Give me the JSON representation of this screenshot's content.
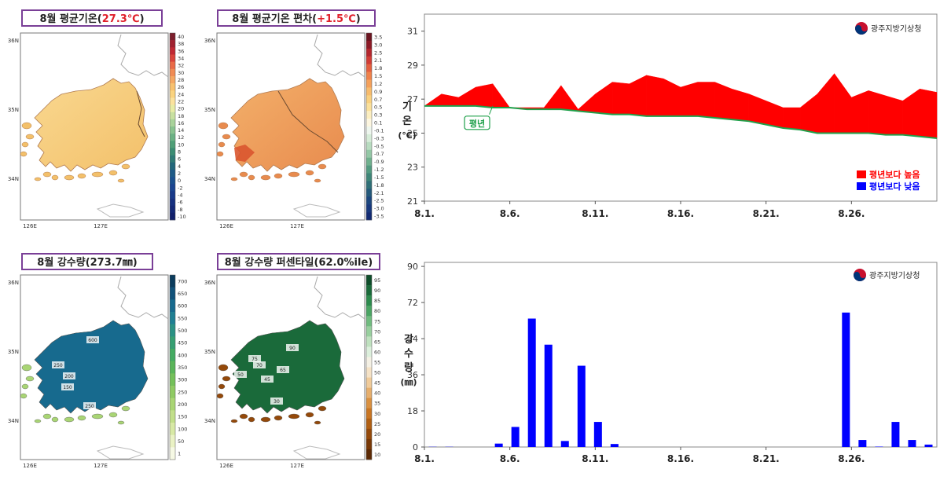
{
  "maps": [
    {
      "title_prefix": "8월 평균기온(",
      "title_value": "27.3℃",
      "title_suffix": ")",
      "colorbar": {
        "ticks": [
          "40",
          "38",
          "36",
          "34",
          "32",
          "30",
          "28",
          "26",
          "24",
          "22",
          "20",
          "18",
          "16",
          "14",
          "12",
          "10",
          "8",
          "6",
          "4",
          "2",
          "0",
          "-2",
          "-4",
          "-6",
          "-8",
          "-10"
        ],
        "colors": [
          "#7b1e2c",
          "#a0202f",
          "#c02833",
          "#d9433b",
          "#e96a47",
          "#f08b54",
          "#f5a762",
          "#f8c16f",
          "#fad37f",
          "#fbe29d",
          "#e8eca5",
          "#c8e0a0",
          "#a8d29a",
          "#88c28f",
          "#6bb184",
          "#4f9f77",
          "#3b8c73",
          "#2f7a75",
          "#22677b",
          "#1e5a86",
          "#1a4f8e",
          "#1a4490",
          "#183a8a",
          "#163080",
          "#142876",
          "#12206b"
        ]
      },
      "lat_labels": [
        "36N",
        "35N",
        "34N"
      ],
      "lon_labels": [
        "126E",
        "127E"
      ]
    },
    {
      "title_prefix": "8월 평균기온 편차(",
      "title_value": "+1.5℃",
      "title_suffix": ")",
      "colorbar": {
        "ticks": [
          "3.5",
          "3.0",
          "2.5",
          "2.1",
          "1.8",
          "1.5",
          "1.2",
          "0.9",
          "0.7",
          "0.5",
          "0.3",
          "0.1",
          "-0.1",
          "-0.3",
          "-0.5",
          "-0.7",
          "-0.9",
          "-1.2",
          "-1.5",
          "-1.8",
          "-2.1",
          "-2.5",
          "-3.0",
          "-3.5"
        ],
        "colors": [
          "#6b1520",
          "#8c1a26",
          "#b3262d",
          "#d03c35",
          "#e35f3e",
          "#ef814a",
          "#f4a05a",
          "#f7bb6c",
          "#f9d07f",
          "#fbe09a",
          "#fceec0",
          "#fdf6e0",
          "#eef6ee",
          "#d6ecd8",
          "#b8dcc0",
          "#93c7a5",
          "#6fb08d",
          "#529a7f",
          "#3e8577",
          "#2f6f76",
          "#24597a",
          "#1c467d",
          "#17387c",
          "#122a72"
        ]
      },
      "lat_labels": [
        "36N",
        "35N",
        "34N"
      ],
      "lon_labels": [
        "126E",
        "127E"
      ]
    },
    {
      "title_prefix": "8월 강수량(",
      "title_value": "273.7㎜",
      "title_suffix": ")",
      "colorbar": {
        "ticks": [
          "700",
          "650",
          "600",
          "550",
          "500",
          "450",
          "400",
          "350",
          "300",
          "250",
          "200",
          "150",
          "100",
          "50",
          "1"
        ],
        "colors": [
          "#0b3c5d",
          "#11527a",
          "#176a8e",
          "#1f7f93",
          "#2a9184",
          "#369f72",
          "#44ab62",
          "#5ab55a",
          "#74c05a",
          "#8fca63",
          "#a9d574",
          "#c2df8a",
          "#d8e9a5",
          "#eaf2c4",
          "#f6f9e4"
        ]
      },
      "lat_labels": [
        "36N",
        "35N",
        "34N"
      ],
      "lon_labels": [
        "126E",
        "127E"
      ],
      "contours": [
        "600",
        "250",
        "200",
        "150",
        "250"
      ]
    },
    {
      "title_prefix": "8월 강수량 퍼센타일(",
      "title_value": "62.0%ile",
      "title_suffix": ")",
      "colorbar": {
        "ticks": [
          "95",
          "90",
          "85",
          "80",
          "75",
          "70",
          "65",
          "60",
          "55",
          "50",
          "45",
          "40",
          "35",
          "30",
          "25",
          "20",
          "15",
          "10"
        ],
        "colors": [
          "#0e4d2a",
          "#1a6a3a",
          "#2c8a4d",
          "#4aa463",
          "#70bb7f",
          "#98cf9e",
          "#bfe1bf",
          "#dcefdc",
          "#f4f0e4",
          "#f5e2c6",
          "#f0cb9a",
          "#e6ae6c",
          "#d99040",
          "#c87522",
          "#b05f12",
          "#94490a",
          "#783806",
          "#5c2904"
        ]
      },
      "lat_labels": [
        "36N",
        "35N",
        "34N"
      ],
      "lon_labels": [
        "126E",
        "127E"
      ],
      "contours": [
        "90",
        "75",
        "70",
        "65",
        "50",
        "45",
        "30"
      ]
    }
  ],
  "agency_label": "광주지방기상청",
  "chart_data": [
    {
      "type": "area",
      "x_tick_labels": [
        "8.1.",
        "8.6.",
        "8.11.",
        "8.16.",
        "8.21.",
        "8.26."
      ],
      "x": [
        1,
        2,
        3,
        4,
        5,
        6,
        7,
        8,
        9,
        10,
        11,
        12,
        13,
        14,
        15,
        16,
        17,
        18,
        19,
        20,
        21,
        22,
        23,
        24,
        25,
        26,
        27,
        28,
        29,
        30,
        31
      ],
      "series": [
        {
          "name": "평년보다 높음",
          "color": "#ff0000",
          "values": [
            26.6,
            27.3,
            27.1,
            27.7,
            27.9,
            26.5,
            26.5,
            26.5,
            27.8,
            26.4,
            27.3,
            28.0,
            27.9,
            28.4,
            28.2,
            27.7,
            28.0,
            28.0,
            27.6,
            27.3,
            26.9,
            26.5,
            26.5,
            27.3,
            28.5,
            27.1,
            27.5,
            27.2,
            26.9,
            27.6,
            27.4
          ]
        },
        {
          "name": "평년",
          "color": "#1fa04a",
          "values": [
            26.6,
            26.6,
            26.6,
            26.6,
            26.5,
            26.5,
            26.4,
            26.4,
            26.4,
            26.3,
            26.2,
            26.1,
            26.1,
            26.0,
            26.0,
            26.0,
            26.0,
            25.9,
            25.8,
            25.7,
            25.5,
            25.3,
            25.2,
            25.0,
            25.0,
            25.0,
            25.0,
            24.9,
            24.9,
            24.8,
            24.7
          ]
        }
      ],
      "below_normal_color": "#0000ff",
      "legend": [
        {
          "label": "평년보다 높음",
          "color": "#ff0000"
        },
        {
          "label": "평년보다 낮음",
          "color": "#0000ff"
        }
      ],
      "legend_position": "bottom-right",
      "normal_annotation": "평년",
      "ylabel_lines": [
        "기",
        "온",
        "(℃)"
      ],
      "yticks": [
        21,
        23,
        25,
        27,
        29,
        31
      ],
      "ylim": [
        21,
        32
      ],
      "grid": false
    },
    {
      "type": "bar",
      "x_tick_labels": [
        "8.1.",
        "8.6.",
        "8.11.",
        "8.16.",
        "8.21.",
        "8.26."
      ],
      "x": [
        1,
        2,
        3,
        4,
        5,
        6,
        7,
        8,
        9,
        10,
        11,
        12,
        13,
        14,
        15,
        16,
        17,
        18,
        19,
        20,
        21,
        22,
        23,
        24,
        25,
        26,
        27,
        28,
        29,
        30,
        31
      ],
      "values": [
        0.1,
        0.1,
        0,
        0,
        1.7,
        10,
        64,
        51,
        3,
        40.5,
        12.5,
        1.5,
        0,
        0,
        0,
        0,
        0,
        0,
        0,
        0,
        0,
        0,
        0,
        0,
        0,
        67,
        3.5,
        0.2,
        12.5,
        3.5,
        1.2
      ],
      "color": "#0000ff",
      "ylabel_lines": [
        "강",
        "수",
        "량",
        "(㎜)"
      ],
      "yticks": [
        0,
        18,
        36,
        54,
        72,
        90
      ],
      "ylim": [
        0,
        92
      ],
      "grid": false
    }
  ]
}
